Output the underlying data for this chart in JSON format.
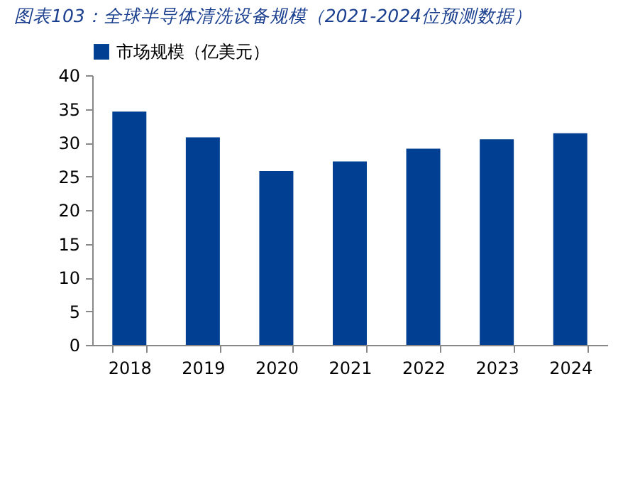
{
  "chart_data": {
    "type": "bar",
    "title": "图表103：全球半导体清洗设备规模（2021-2024位预测数据）",
    "categories": [
      "2018",
      "2019",
      "2020",
      "2021",
      "2022",
      "2023",
      "2024"
    ],
    "series": [
      {
        "name": "市场规模（亿美元）",
        "color": "#003f91",
        "values": [
          34.6,
          30.8,
          25.8,
          27.2,
          29.1,
          30.5,
          31.4
        ]
      }
    ],
    "ylim": [
      0,
      40
    ],
    "yticks": [
      0,
      5,
      10,
      15,
      20,
      25,
      30,
      35,
      40
    ],
    "grid": false,
    "legend": "top"
  }
}
